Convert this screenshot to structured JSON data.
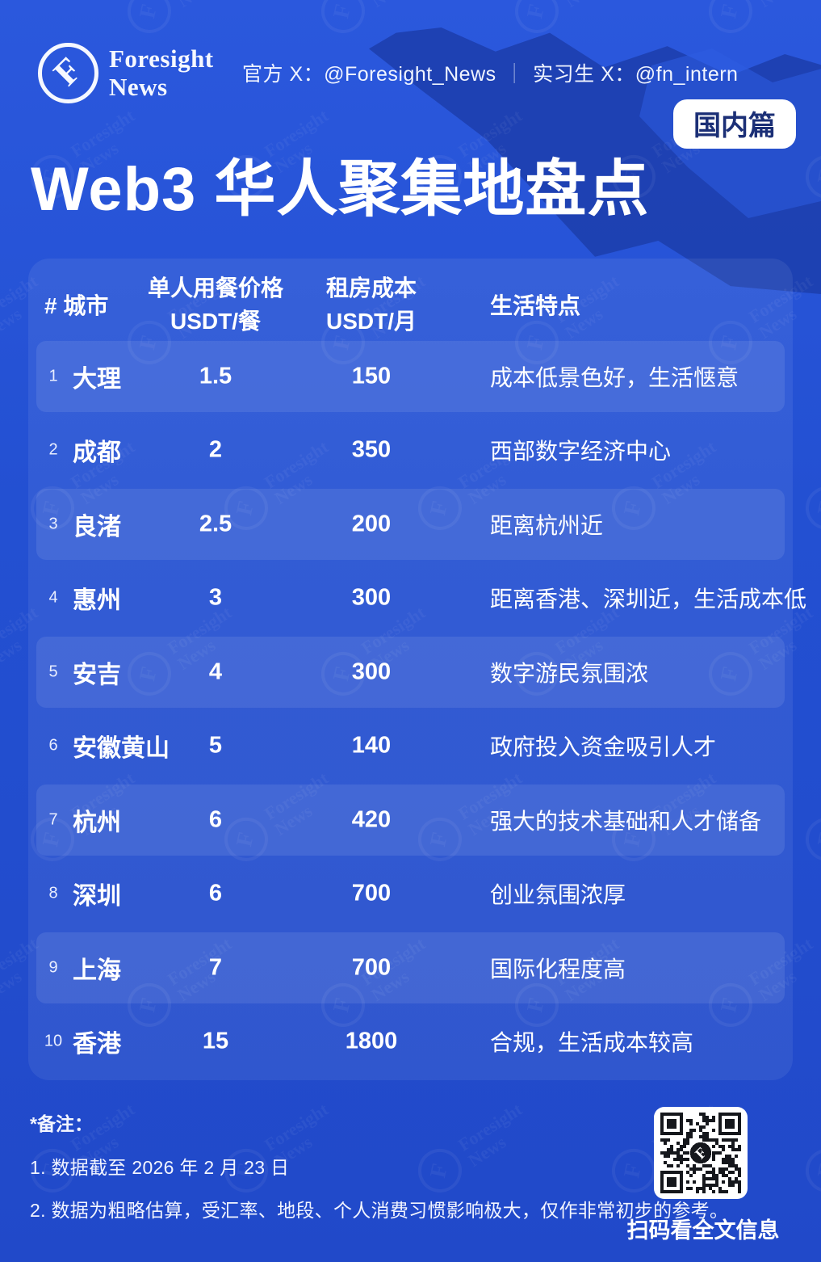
{
  "colors": {
    "background": "#2350d2",
    "map_shape": "#1d3fae",
    "badge_text": "#1b2f76",
    "table_panel": "rgba(255,255,255,0.07)",
    "row_stripe": "rgba(255,255,255,0.09)",
    "text": "#ffffff"
  },
  "header": {
    "brand": {
      "mark": "F",
      "line1": "Foresight",
      "line2": "News"
    },
    "handles": {
      "official": "官方 X：@Foresight_News",
      "separator": "｜",
      "intern": "实习生 X：@fn_intern"
    },
    "badge": "国内篇",
    "title": "Web3 华人聚集地盘点"
  },
  "table": {
    "columns": [
      {
        "label": "# 城市"
      },
      {
        "label": "单人用餐价格",
        "sub": "USDT/餐"
      },
      {
        "label": "租房成本",
        "sub": "USDT/月"
      },
      {
        "label": "生活特点"
      }
    ],
    "rows": [
      {
        "rank": "1",
        "city": "大理",
        "meal": "1.5",
        "rent": "150",
        "features": "成本低景色好，生活惬意"
      },
      {
        "rank": "2",
        "city": "成都",
        "meal": "2",
        "rent": "350",
        "features": "西部数字经济中心"
      },
      {
        "rank": "3",
        "city": "良渚",
        "meal": "2.5",
        "rent": "200",
        "features": "距离杭州近"
      },
      {
        "rank": "4",
        "city": "惠州",
        "meal": "3",
        "rent": "300",
        "features": "距离香港、深圳近，生活成本低"
      },
      {
        "rank": "5",
        "city": "安吉",
        "meal": "4",
        "rent": "300",
        "features": "数字游民氛围浓"
      },
      {
        "rank": "6",
        "city": "安徽黄山",
        "meal": "5",
        "rent": "140",
        "features": "政府投入资金吸引人才"
      },
      {
        "rank": "7",
        "city": "杭州",
        "meal": "6",
        "rent": "420",
        "features": "强大的技术基础和人才储备"
      },
      {
        "rank": "8",
        "city": "深圳",
        "meal": "6",
        "rent": "700",
        "features": "创业氛围浓厚"
      },
      {
        "rank": "9",
        "city": "上海",
        "meal": "7",
        "rent": "700",
        "features": "国际化程度高"
      },
      {
        "rank": "10",
        "city": "香港",
        "meal": "15",
        "rent": "1800",
        "features": "合规，生活成本较高"
      }
    ]
  },
  "footer": {
    "notes_title": "*备注：",
    "note1": "1. 数据截至 2026 年 2 月 23 日",
    "note2": "2. 数据为粗略估算，受汇率、地段、个人消费习惯影响极大，仅作非常初步的参考。",
    "qr_caption": "扫码看全文信息"
  },
  "chart_data": {
    "type": "table",
    "title": "Web3 华人聚集地盘点",
    "badge": "国内篇",
    "columns": [
      "#",
      "城市",
      "单人用餐价格 USDT/餐",
      "租房成本 USDT/月",
      "生活特点"
    ],
    "rows": [
      [
        1,
        "大理",
        1.5,
        150,
        "成本低景色好，生活惬意"
      ],
      [
        2,
        "成都",
        2,
        350,
        "西部数字经济中心"
      ],
      [
        3,
        "良渚",
        2.5,
        200,
        "距离杭州近"
      ],
      [
        4,
        "惠州",
        3,
        300,
        "距离香港、深圳近，生活成本低"
      ],
      [
        5,
        "安吉",
        4,
        300,
        "数字游民氛围浓"
      ],
      [
        6,
        "安徽黄山",
        5,
        140,
        "政府投入资金吸引人才"
      ],
      [
        7,
        "杭州",
        6,
        420,
        "强大的技术基础和人才储备"
      ],
      [
        8,
        "深圳",
        6,
        700,
        "创业氛围浓厚"
      ],
      [
        9,
        "上海",
        7,
        700,
        "国际化程度高"
      ],
      [
        10,
        "香港",
        15,
        1800,
        "合规，生活成本较高"
      ]
    ]
  }
}
